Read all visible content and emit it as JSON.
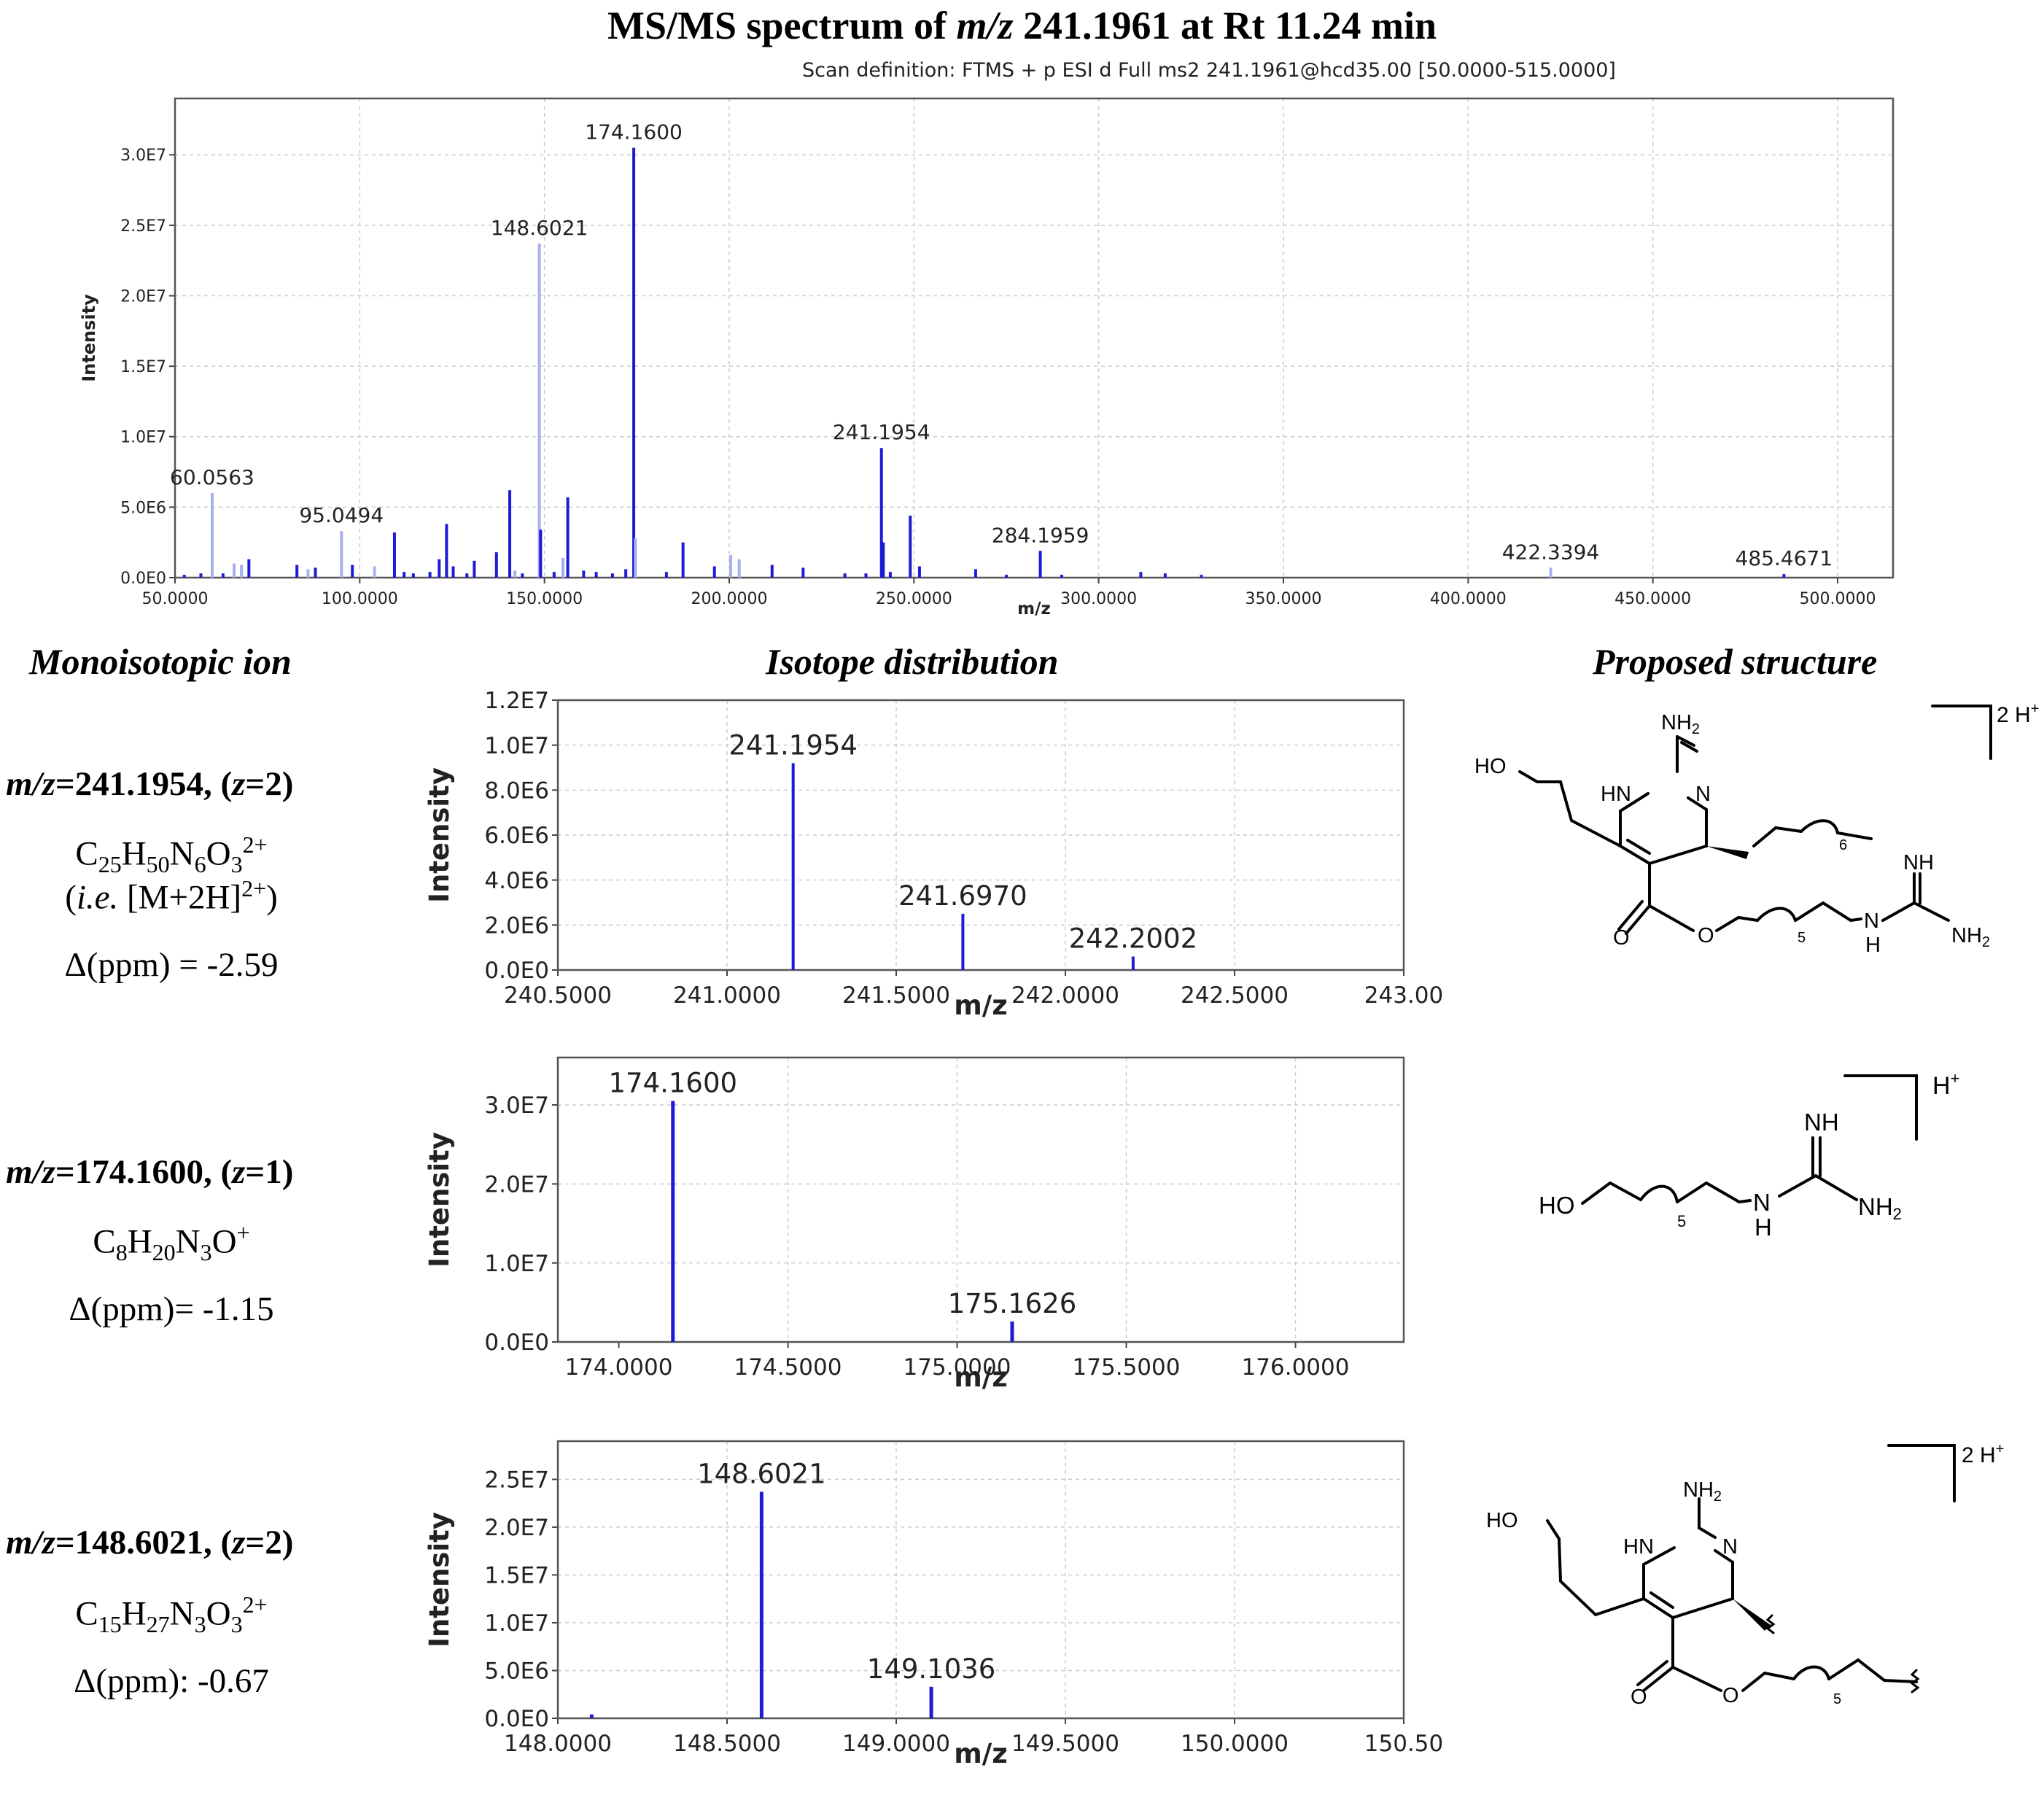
{
  "title": {
    "pre": "MS/MS spectrum of ",
    "italic": "m/z",
    "post": " 241.1961 at Rt 11.24 min"
  },
  "column_headers": {
    "ion": "Monoisotopic ion",
    "isotope": "Isotope distribution",
    "structure": "Proposed structure"
  },
  "ions": [
    {
      "mz_label": "m/z",
      "mz_value": "=241.1954, (",
      "z_label": "z",
      "z_value": "=2)",
      "formula": [
        "C",
        "25",
        "H",
        "50",
        "N",
        "6",
        "O",
        "3",
        "2+"
      ],
      "ie_label": "i.e.",
      "ie_text": " [M+2H]",
      "ie_sup": "2+",
      "ppm": "Δ(ppm) = -2.59"
    },
    {
      "mz_label": "m/z",
      "mz_value": "=174.1600, (",
      "z_label": "z",
      "z_value": "=1)",
      "formula": [
        "C",
        "8",
        "H",
        "20",
        "N",
        "3",
        "O",
        "",
        "+"
      ],
      "ppm": "Δ(ppm)= -1.15"
    },
    {
      "mz_label": "m/z",
      "mz_value": "=148.6021, (",
      "z_label": "z",
      "z_value": "=2)",
      "formula": [
        "C",
        "15",
        "H",
        "27",
        "N",
        "3",
        "O",
        "3",
        "2+"
      ],
      "ppm": "Δ(ppm): -0.67"
    }
  ],
  "structures": {
    "s1": {
      "charge": "2 H",
      "charge_sup": "+",
      "labels": {
        "nh2": "NH",
        "nh2_sub": "2",
        "ho": "HO",
        "hn": "HN",
        "n": "N",
        "n6": "6",
        "nh": "NH",
        "o1": "O",
        "o2": "O",
        "n5": "5",
        "nh_chain": "N",
        "h_chain": "H",
        "nh2b": "NH",
        "nh2b_sub": "2"
      }
    },
    "s2": {
      "charge": "H",
      "charge_sup": "+",
      "labels": {
        "nh": "NH",
        "ho": "HO",
        "n5": "5",
        "n": "N",
        "h": "H",
        "nh2": "NH",
        "nh2_sub": "2"
      }
    },
    "s3": {
      "charge": "2 H",
      "charge_sup": "+",
      "labels": {
        "nh2": "NH",
        "nh2_sub": "2",
        "ho": "HO",
        "hn": "HN",
        "n": "N",
        "o1": "O",
        "o2": "O",
        "n5": "5"
      }
    }
  },
  "chart_data": [
    {
      "type": "bar",
      "title": "",
      "subtitle": "Scan definition: FTMS + p ESI d Full ms2 241.1961@hcd35.00 [50.0000-515.0000]",
      "xlabel": "m/z",
      "ylabel": "Intensity",
      "xlim": [
        50,
        515
      ],
      "ylim": [
        0,
        34000000.0
      ],
      "xticks": [
        50,
        100,
        150,
        200,
        250,
        300,
        350,
        400,
        450,
        500
      ],
      "xtick_labels": [
        "50.0000",
        "100.0000",
        "150.0000",
        "200.0000",
        "250.0000",
        "300.0000",
        "350.0000",
        "400.0000",
        "450.0000",
        "500.0000"
      ],
      "yticks": [
        0,
        5000000.0,
        10000000.0,
        15000000.0,
        20000000.0,
        25000000.0,
        30000000.0
      ],
      "ytick_labels": [
        "0.0E0",
        "5.0E6",
        "1.0E7",
        "1.5E7",
        "2.0E7",
        "2.5E7",
        "3.0E7"
      ],
      "grid": true,
      "series": [
        {
          "values": [
            [
              174.16,
              30500000.0,
              "d"
            ],
            [
              148.6021,
              23700000.0,
              "l"
            ],
            [
              60.0563,
              6000000.0,
              "l"
            ],
            [
              95.0494,
              3300000.0,
              "l"
            ],
            [
              241.1954,
              9200000.0,
              "d"
            ],
            [
              284.1959,
              1900000.0,
              "d"
            ],
            [
              422.3394,
              700000.0,
              "l"
            ],
            [
              485.4671,
              250000.0,
              "d"
            ],
            [
              148.95,
              3400000.0,
              "d"
            ],
            [
              140.6,
              6200000.0,
              "d"
            ],
            [
              156.3,
              5700000.0,
              "d"
            ],
            [
              123.5,
              3800000.0,
              "d"
            ],
            [
              109.4,
              3200000.0,
              "d"
            ],
            [
              249.0,
              4400000.0,
              "d"
            ],
            [
              241.7,
              2500000.0,
              "d"
            ],
            [
              174.6,
              2800000.0,
              "l"
            ],
            [
              187.5,
              2500000.0,
              "d"
            ],
            [
              200.4,
              1600000.0,
              "l"
            ],
            [
              202.7,
              1300000.0,
              "l"
            ],
            [
              155.0,
              1400000.0,
              "l"
            ],
            [
              137.0,
              1800000.0,
              "d"
            ],
            [
              131.0,
              1200000.0,
              "d"
            ],
            [
              121.5,
              1300000.0,
              "d"
            ],
            [
              98.0,
              900000.0,
              "d"
            ],
            [
              104.0,
              800000.0,
              "l"
            ],
            [
              83.0,
              900000.0,
              "d"
            ],
            [
              86.0,
              600000.0,
              "l"
            ],
            [
              88.0,
              700000.0,
              "d"
            ],
            [
              70.0,
              1300000.0,
              "d"
            ],
            [
              68.0,
              900000.0,
              "l"
            ],
            [
              66.0,
              1000000.0,
              "l"
            ],
            [
              63.0,
              300000.0,
              "d"
            ],
            [
              57.0,
              300000.0,
              "d"
            ],
            [
              52.5,
              200000.0,
              "d"
            ],
            [
              112.0,
              400000.0,
              "d"
            ],
            [
              114.5,
              300000.0,
              "d"
            ],
            [
              119.0,
              400000.0,
              "d"
            ],
            [
              125.3,
              800000.0,
              "d"
            ],
            [
              129.0,
              300000.0,
              "d"
            ],
            [
              142.0,
              500000.0,
              "l"
            ],
            [
              144.0,
              300000.0,
              "d"
            ],
            [
              152.6,
              400000.0,
              "d"
            ],
            [
              160.6,
              500000.0,
              "d"
            ],
            [
              164.0,
              400000.0,
              "d"
            ],
            [
              168.4,
              300000.0,
              "d"
            ],
            [
              172.0,
              600000.0,
              "d"
            ],
            [
              183.0,
              400000.0,
              "d"
            ],
            [
              196.0,
              800000.0,
              "d"
            ],
            [
              211.6,
              900000.0,
              "d"
            ],
            [
              220.0,
              700000.0,
              "d"
            ],
            [
              231.3,
              300000.0,
              "d"
            ],
            [
              237.0,
              300000.0,
              "d"
            ],
            [
              243.6,
              400000.0,
              "d"
            ],
            [
              251.5,
              800000.0,
              "d"
            ],
            [
              266.7,
              600000.0,
              "d"
            ],
            [
              275.0,
              200000.0,
              "d"
            ],
            [
              290.0,
              200000.0,
              "d"
            ],
            [
              311.4,
              400000.0,
              "d"
            ],
            [
              318.0,
              300000.0,
              "d"
            ],
            [
              327.8,
              200000.0,
              "d"
            ]
          ]
        }
      ],
      "data_labels": [
        {
          "x": 174.16,
          "text": "174.1600"
        },
        {
          "x": 148.6021,
          "text": "148.6021"
        },
        {
          "x": 241.1954,
          "text": "241.1954"
        },
        {
          "x": 60.0563,
          "text": "60.0563"
        },
        {
          "x": 95.0494,
          "text": "95.0494"
        },
        {
          "x": 284.1959,
          "text": "284.1959"
        },
        {
          "x": 422.3394,
          "text": "422.3394"
        },
        {
          "x": 485.4671,
          "text": "485.4671"
        }
      ]
    },
    {
      "type": "bar",
      "title": "",
      "xlabel": "m/z",
      "ylabel": "Intensity",
      "xlim": [
        240.5,
        243.0
      ],
      "ylim": [
        0,
        12000000.0
      ],
      "xticks": [
        240.5,
        241.0,
        241.5,
        242.0,
        242.5,
        243.0
      ],
      "xtick_labels": [
        "240.5000",
        "241.0000",
        "241.5000",
        "242.0000",
        "242.5000",
        "243.00"
      ],
      "yticks": [
        0,
        2000000.0,
        4000000.0,
        6000000.0,
        8000000.0,
        10000000.0,
        12000000.0
      ],
      "ytick_labels": [
        "0.0E0",
        "2.0E6",
        "4.0E6",
        "6.0E6",
        "8.0E6",
        "1.0E7",
        "1.2E7"
      ],
      "grid": true,
      "series": [
        {
          "values": [
            [
              241.1954,
              9200000.0
            ],
            [
              241.697,
              2500000.0
            ],
            [
              242.2002,
              600000.0
            ]
          ]
        }
      ],
      "data_labels": [
        {
          "x": 241.1954,
          "text": "241.1954"
        },
        {
          "x": 241.697,
          "text": "241.6970"
        },
        {
          "x": 242.2002,
          "text": "242.2002"
        }
      ]
    },
    {
      "type": "bar",
      "title": "",
      "xlabel": "m/z",
      "ylabel": "Intensity",
      "xlim": [
        173.82,
        176.32
      ],
      "ylim": [
        0,
        36000000.0
      ],
      "xticks": [
        174.0,
        174.5,
        175.0,
        175.5,
        176.0
      ],
      "xtick_labels": [
        "174.0000",
        "174.5000",
        "175.0000",
        "175.5000",
        "176.0000"
      ],
      "yticks": [
        0,
        10000000.0,
        20000000.0,
        30000000.0
      ],
      "ytick_labels": [
        "0.0E0",
        "1.0E7",
        "2.0E7",
        "3.0E7"
      ],
      "grid": true,
      "series": [
        {
          "values": [
            [
              174.16,
              30500000.0
            ],
            [
              175.1626,
              2600000.0
            ]
          ]
        }
      ],
      "data_labels": [
        {
          "x": 174.16,
          "text": "174.1600"
        },
        {
          "x": 175.1626,
          "text": "175.1626"
        }
      ]
    },
    {
      "type": "bar",
      "title": "",
      "xlabel": "m/z",
      "ylabel": "Intensity",
      "xlim": [
        148.0,
        150.5
      ],
      "ylim": [
        0,
        29000000.0
      ],
      "xticks": [
        148.0,
        148.5,
        149.0,
        149.5,
        150.0,
        150.5
      ],
      "xtick_labels": [
        "148.0000",
        "148.5000",
        "149.0000",
        "149.5000",
        "150.0000",
        "150.50"
      ],
      "yticks": [
        0,
        5000000.0,
        10000000.0,
        15000000.0,
        20000000.0,
        25000000.0
      ],
      "ytick_labels": [
        "0.0E0",
        "5.0E6",
        "1.0E7",
        "1.5E7",
        "2.0E7",
        "2.5E7"
      ],
      "grid": true,
      "series": [
        {
          "values": [
            [
              148.6021,
              23700000.0
            ],
            [
              149.1036,
              3300000.0
            ],
            [
              148.1,
              400000.0
            ]
          ]
        }
      ],
      "data_labels": [
        {
          "x": 148.6021,
          "text": "148.6021"
        },
        {
          "x": 149.1036,
          "text": "149.1036"
        }
      ]
    }
  ]
}
